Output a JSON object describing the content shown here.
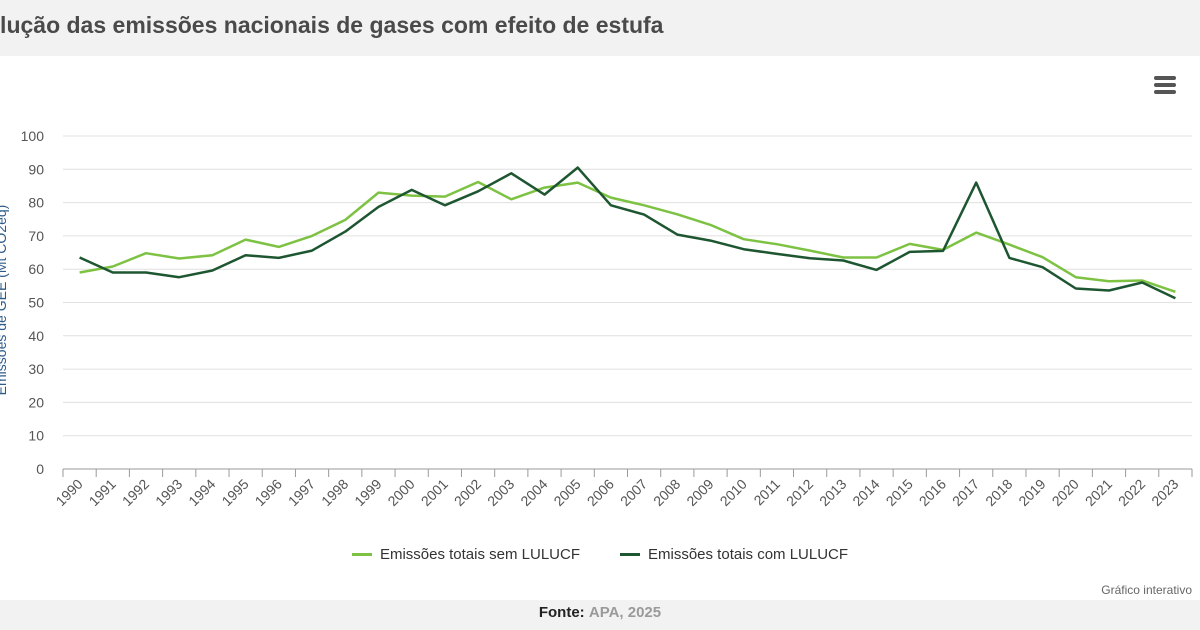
{
  "title": "olução das emissões nacionais de gases com efeito de estufa",
  "footer": {
    "interactive_label": "Gráfico interativo",
    "source_label": "Fonte:",
    "source_value": "APA, 2025"
  },
  "menu": {
    "icon": "hamburger-menu-icon"
  },
  "colors": {
    "light": "#7dc242",
    "dark": "#1e5631",
    "grid": "#e0e0e0"
  },
  "chart_data": {
    "type": "line",
    "title": "Evolução das emissões nacionais de gases com efeito de estufa",
    "xlabel": "",
    "ylabel": "Emissões de GEE (Mt CO2eq)",
    "ylim": [
      0,
      100
    ],
    "yticks": [
      0,
      10,
      20,
      30,
      40,
      50,
      60,
      70,
      80,
      90,
      100
    ],
    "grid": true,
    "legend_position": "bottom-center",
    "x": [
      "1990",
      "1991",
      "1992",
      "1993",
      "1994",
      "1995",
      "1996",
      "1997",
      "1998",
      "1999",
      "2000",
      "2001",
      "2002",
      "2003",
      "2004",
      "2005",
      "2006",
      "2007",
      "2008",
      "2009",
      "2010",
      "2011",
      "2012",
      "2013",
      "2014",
      "2015",
      "2016",
      "2017",
      "2018",
      "2019",
      "2020",
      "2021",
      "2022",
      "2023"
    ],
    "series": [
      {
        "name": "Emissões totais sem LULUCF",
        "color": "#7dc242",
        "values": [
          59.0,
          60.8,
          64.8,
          63.2,
          64.2,
          68.9,
          66.7,
          70.0,
          74.8,
          83.0,
          82.1,
          81.8,
          86.2,
          81.0,
          84.5,
          86.0,
          81.5,
          79.2,
          76.5,
          73.3,
          69.0,
          67.5,
          65.6,
          63.5,
          63.5,
          67.6,
          65.8,
          71.0,
          67.4,
          63.6,
          57.6,
          56.4,
          56.6,
          53.2
        ]
      },
      {
        "name": "Emissões totais com LULUCF",
        "color": "#1e5631",
        "values": [
          63.5,
          59.0,
          59.0,
          57.6,
          59.6,
          64.2,
          63.4,
          65.6,
          71.3,
          78.7,
          83.8,
          79.2,
          83.4,
          88.8,
          82.4,
          90.5,
          79.2,
          76.4,
          70.4,
          68.6,
          66.0,
          64.6,
          63.3,
          62.6,
          59.8,
          65.2,
          65.5,
          86.0,
          63.4,
          60.6,
          54.2,
          53.6,
          56.0,
          51.3
        ]
      }
    ]
  }
}
